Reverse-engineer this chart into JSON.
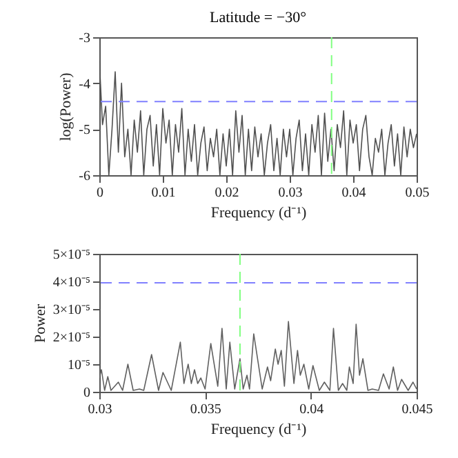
{
  "chart_data": [
    {
      "type": "line",
      "title": "Latitude = −30°",
      "xlabel": "Frequency (d⁻¹)",
      "ylabel": "log(Power)",
      "x": [
        0,
        0.0005,
        0.001,
        0.0015,
        0.002,
        0.0025,
        0.003,
        0.0035,
        0.004,
        0.0045,
        0.005,
        0.0055,
        0.006,
        0.0065,
        0.007,
        0.0075,
        0.008,
        0.0085,
        0.009,
        0.0095,
        0.01,
        0.0105,
        0.011,
        0.0115,
        0.012,
        0.0125,
        0.013,
        0.0135,
        0.014,
        0.0145,
        0.015,
        0.0155,
        0.016,
        0.0165,
        0.017,
        0.0175,
        0.018,
        0.0185,
        0.019,
        0.0195,
        0.02,
        0.0205,
        0.021,
        0.0215,
        0.022,
        0.0225,
        0.023,
        0.0235,
        0.024,
        0.0245,
        0.025,
        0.0255,
        0.026,
        0.0265,
        0.027,
        0.0275,
        0.028,
        0.0285,
        0.029,
        0.0295,
        0.03,
        0.0305,
        0.031,
        0.0315,
        0.032,
        0.0325,
        0.033,
        0.0335,
        0.034,
        0.0345,
        0.035,
        0.0355,
        0.036,
        0.0365,
        0.037,
        0.0375,
        0.038,
        0.0385,
        0.039,
        0.0395,
        0.04,
        0.0405,
        0.041,
        0.0415,
        0.042,
        0.0425,
        0.043,
        0.0435,
        0.044,
        0.0445,
        0.045,
        0.0455,
        0.046,
        0.0465,
        0.047,
        0.0475,
        0.048,
        0.0485,
        0.049,
        0.0495,
        0.05
      ],
      "series": [
        {
          "color": "#505050",
          "values": [
            -3.5,
            -4.9,
            -4.5,
            -6,
            -5.0,
            -3.75,
            -5.5,
            -4.0,
            -5.6,
            -5.0,
            -6,
            -4.8,
            -5.5,
            -4.6,
            -6,
            -5.0,
            -4.7,
            -5.8,
            -4.9,
            -6,
            -4.55,
            -5.3,
            -4.8,
            -6,
            -4.9,
            -5.5,
            -4.55,
            -6,
            -5.0,
            -5.7,
            -4.9,
            -6,
            -5.3,
            -4.95,
            -5.9,
            -5.2,
            -5.6,
            -5.0,
            -6,
            -5.1,
            -5.8,
            -5.0,
            -6,
            -4.6,
            -5.5,
            -4.7,
            -6,
            -5.0,
            -5.9,
            -4.95,
            -5.6,
            -5.1,
            -6,
            -5.3,
            -4.9,
            -5.9,
            -5.2,
            -6,
            -5.0,
            -5.6,
            -5.0,
            -6,
            -5.2,
            -4.8,
            -5.9,
            -5.1,
            -6,
            -4.9,
            -5.5,
            -4.7,
            -6,
            -4.65,
            -5.7,
            -5.0,
            -5.9,
            -4.9,
            -5.4,
            -4.6,
            -6,
            -4.8,
            -5.3,
            -4.9,
            -5.9,
            -5.0,
            -4.7,
            -5.6,
            -6,
            -5.2,
            -5.5,
            -5.0,
            -6,
            -5.3,
            -4.9,
            -5.8,
            -5.1,
            -6,
            -4.95,
            -5.6,
            -5.0,
            -5.4,
            -5.1
          ]
        }
      ],
      "xlim": [
        0,
        0.05
      ],
      "xticks": [
        0,
        0.01,
        0.02,
        0.03,
        0.04,
        0.05
      ],
      "ylim": [
        -6,
        -3
      ],
      "yticks": [
        -6,
        -5,
        -4,
        -3
      ],
      "ref_lines": [
        {
          "axis": "y",
          "value": -4.4,
          "color": "#8080ff",
          "line_style": "dashed"
        },
        {
          "axis": "x",
          "value": 0.0366,
          "color": "#80ff80",
          "line_style": "dashed"
        }
      ]
    },
    {
      "type": "line",
      "xlabel": "Frequency (d⁻¹)",
      "ylabel": "Power",
      "x": [
        0.03,
        0.0301,
        0.03025,
        0.0304,
        0.03055,
        0.0309,
        0.0311,
        0.03135,
        0.0316,
        0.0319,
        0.0321,
        0.03247,
        0.0328,
        0.03301,
        0.0334,
        0.03383,
        0.034,
        0.0342,
        0.03435,
        0.0345,
        0.03465,
        0.0348,
        0.035,
        0.03527,
        0.0356,
        0.0358,
        0.036,
        0.03617,
        0.0364,
        0.03665,
        0.0368,
        0.03698,
        0.0371,
        0.0373,
        0.0377,
        0.03795,
        0.0381,
        0.03832,
        0.03845,
        0.0386,
        0.03875,
        0.03894,
        0.0392,
        0.03937,
        0.0395,
        0.03967,
        0.0399,
        0.0401,
        0.0404,
        0.04064,
        0.0409,
        0.04107,
        0.0413,
        0.0415,
        0.0417,
        0.04182,
        0.042,
        0.04214,
        0.0423,
        0.04246,
        0.0427,
        0.0429,
        0.0432,
        0.04343,
        0.0437,
        0.0439,
        0.0441,
        0.04429,
        0.0446,
        0.04483,
        0.045
      ],
      "series": [
        {
          "color": "#606060",
          "values": [
            5e-06,
            8e-06,
            5e-07,
            5.5e-06,
            5e-07,
            3.5e-06,
            5e-07,
            1e-05,
            5e-07,
            1e-06,
            5e-07,
            1.35e-05,
            5e-07,
            7e-06,
            5e-07,
            1.8e-05,
            3e-06,
            1e-05,
            3e-06,
            8e-06,
            3e-06,
            5e-06,
            1e-06,
            1.75e-05,
            2e-06,
            2.3e-05,
            1e-06,
            1.8e-05,
            1e-06,
            1.2e-05,
            1e-06,
            6e-06,
            1e-06,
            2.1e-05,
            1e-06,
            9e-06,
            4e-06,
            1.55e-05,
            1e-05,
            1.5e-05,
            2e-06,
            2.55e-05,
            3e-06,
            1.5e-05,
            6e-06,
            1e-05,
            1e-06,
            9.5e-06,
            5e-07,
            3.5e-06,
            5e-07,
            2.3e-05,
            5e-07,
            3e-06,
            5e-07,
            9e-06,
            3e-06,
            2.45e-05,
            6e-06,
            1.2e-05,
            5e-07,
            1e-06,
            5e-07,
            6.5e-06,
            1e-06,
            9e-06,
            5e-07,
            4.5e-06,
            5e-07,
            3.5e-06,
            1e-06
          ]
        }
      ],
      "xlim": [
        0.03,
        0.045
      ],
      "xticks": [
        0.03,
        0.035,
        0.04,
        0.045
      ],
      "ylim": [
        0,
        5e-05
      ],
      "yticks": [
        0,
        {
          "value": 1e-05,
          "label": "10⁻⁵"
        },
        {
          "value": 2e-05,
          "label": "2×10⁻⁵"
        },
        {
          "value": 3e-05,
          "label": "3×10⁻⁵"
        },
        {
          "value": 4e-05,
          "label": "4×10⁻⁵"
        },
        {
          "value": 5e-05,
          "label": "5×10⁻⁵"
        }
      ],
      "ref_lines": [
        {
          "axis": "y",
          "value": 3.95e-05,
          "color": "#8080ff",
          "line_style": "dashed"
        },
        {
          "axis": "x",
          "value": 0.03665,
          "color": "#80ff80",
          "line_style": "dashed"
        }
      ]
    }
  ]
}
